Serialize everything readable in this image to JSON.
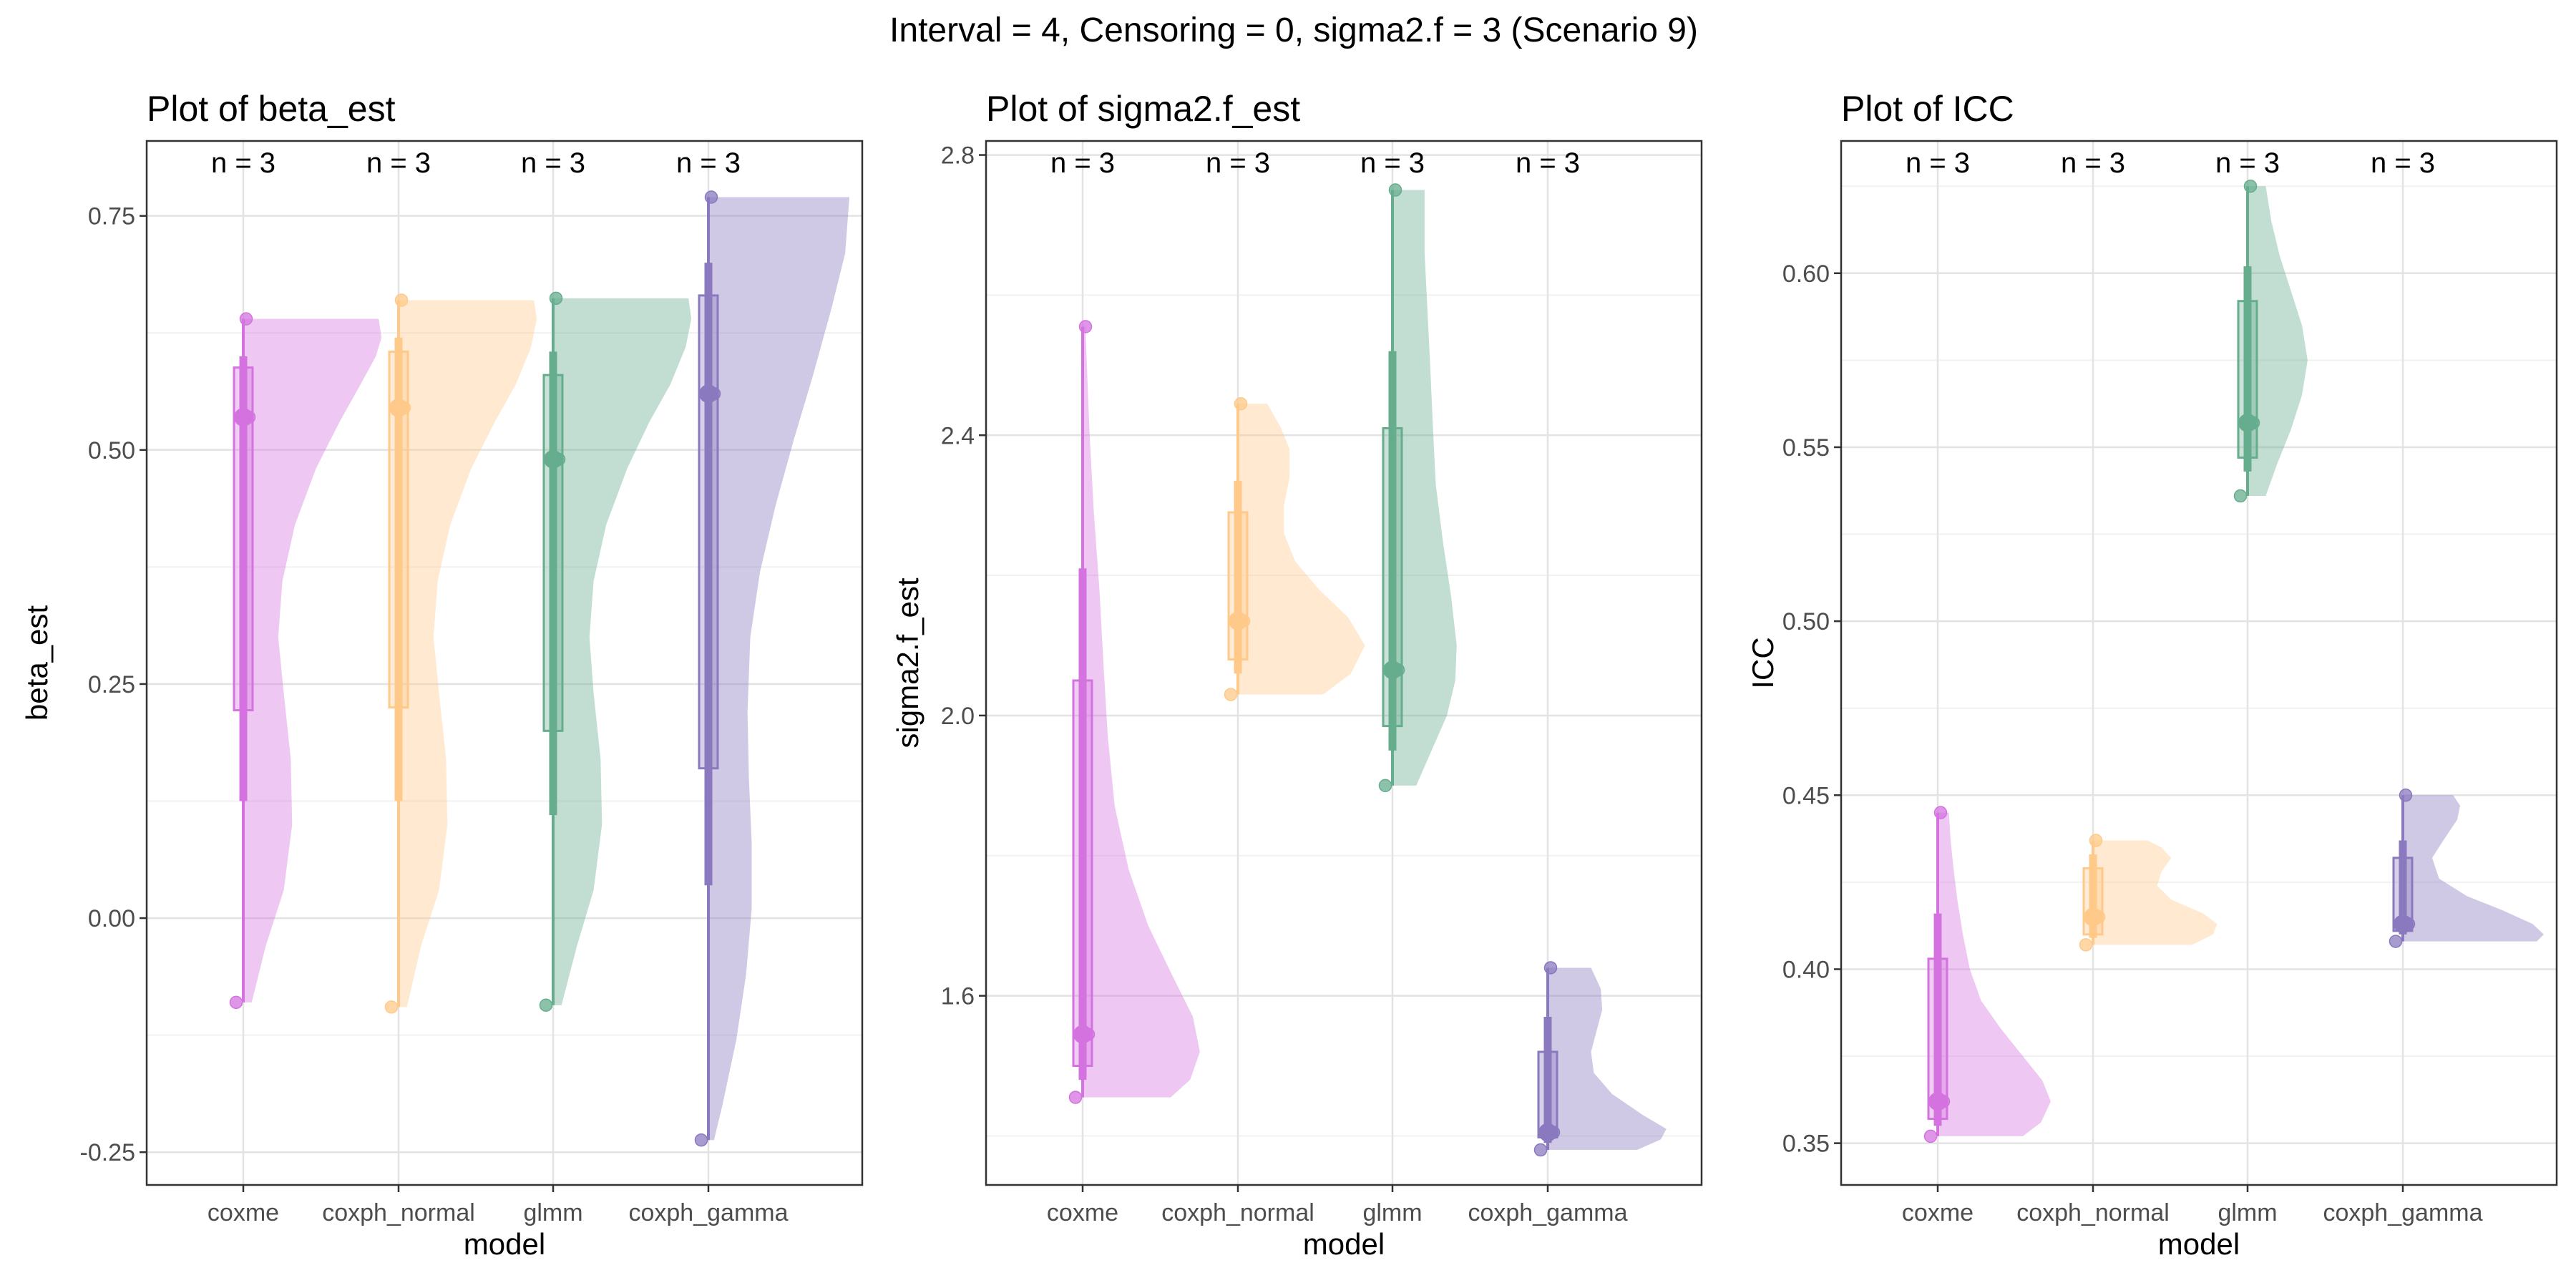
{
  "figure_title": "Interval = 4, Censoring = 0, sigma2.f = 3 (Scenario 9)",
  "colors": {
    "coxme": "#d473e0",
    "coxph_normal": "#ffc989",
    "glmm": "#66ad8e",
    "coxph_gamma": "#8a79bf",
    "grid_major": "#e3e3e3",
    "grid_minor": "#f1f1f1",
    "panel_border": "#333333",
    "text": "#000000",
    "tick_text": "#4d4d4d"
  },
  "chart_data": [
    {
      "type": "raincloud",
      "title": "Plot of beta_est",
      "xlabel": "model",
      "ylabel": "beta_est",
      "categories": [
        "coxme",
        "coxph_normal",
        "glmm",
        "coxph_gamma"
      ],
      "n_labels": [
        "n = 3",
        "n = 3",
        "n = 3",
        "n = 3"
      ],
      "ylim": [
        -0.285,
        0.83
      ],
      "yticks": [
        -0.25,
        0.0,
        0.25,
        0.5,
        0.75
      ],
      "ytick_labels": [
        "-0.25",
        "0.00",
        "0.25",
        "0.50",
        "0.75"
      ],
      "series": [
        {
          "category": "coxme",
          "points": [
            -0.09,
            0.535,
            0.64
          ],
          "median": 0.535,
          "q1": 0.222,
          "q3": 0.588,
          "p10": 0.125,
          "p90": 0.6,
          "density": [
            [
              -0.09,
              0.05
            ],
            [
              -0.03,
              0.15
            ],
            [
              0.03,
              0.28
            ],
            [
              0.1,
              0.34
            ],
            [
              0.17,
              0.33
            ],
            [
              0.24,
              0.28
            ],
            [
              0.3,
              0.24
            ],
            [
              0.36,
              0.27
            ],
            [
              0.42,
              0.36
            ],
            [
              0.48,
              0.51
            ],
            [
              0.53,
              0.68
            ],
            [
              0.57,
              0.83
            ],
            [
              0.6,
              0.94
            ],
            [
              0.62,
              0.98
            ],
            [
              0.64,
              0.96
            ]
          ]
        },
        {
          "category": "coxph_normal",
          "points": [
            -0.095,
            0.545,
            0.66
          ],
          "median": 0.545,
          "q1": 0.225,
          "q3": 0.605,
          "p10": 0.125,
          "p90": 0.62,
          "density": [
            [
              -0.095,
              0.05
            ],
            [
              -0.03,
              0.15
            ],
            [
              0.03,
              0.28
            ],
            [
              0.1,
              0.34
            ],
            [
              0.17,
              0.33
            ],
            [
              0.24,
              0.28
            ],
            [
              0.3,
              0.24
            ],
            [
              0.36,
              0.27
            ],
            [
              0.42,
              0.36
            ],
            [
              0.48,
              0.51
            ],
            [
              0.53,
              0.68
            ],
            [
              0.57,
              0.83
            ],
            [
              0.61,
              0.94
            ],
            [
              0.64,
              0.98
            ],
            [
              0.66,
              0.96
            ]
          ]
        },
        {
          "category": "glmm",
          "points": [
            -0.093,
            0.49,
            0.662
          ],
          "median": 0.49,
          "q1": 0.2,
          "q3": 0.58,
          "p10": 0.11,
          "p90": 0.605,
          "density": [
            [
              -0.093,
              0.05
            ],
            [
              -0.03,
              0.16
            ],
            [
              0.03,
              0.28
            ],
            [
              0.1,
              0.34
            ],
            [
              0.17,
              0.33
            ],
            [
              0.24,
              0.28
            ],
            [
              0.3,
              0.25
            ],
            [
              0.36,
              0.28
            ],
            [
              0.42,
              0.37
            ],
            [
              0.48,
              0.52
            ],
            [
              0.53,
              0.68
            ],
            [
              0.57,
              0.83
            ],
            [
              0.61,
              0.94
            ],
            [
              0.64,
              0.98
            ],
            [
              0.662,
              0.96
            ]
          ]
        },
        {
          "category": "coxph_gamma",
          "points": [
            -0.237,
            0.56,
            0.77
          ],
          "median": 0.56,
          "q1": 0.16,
          "q3": 0.665,
          "p10": 0.035,
          "p90": 0.7,
          "density": [
            [
              -0.237,
              0.03
            ],
            [
              -0.2,
              0.09
            ],
            [
              -0.13,
              0.19
            ],
            [
              -0.06,
              0.26
            ],
            [
              0.01,
              0.3
            ],
            [
              0.08,
              0.3
            ],
            [
              0.15,
              0.28
            ],
            [
              0.22,
              0.27
            ],
            [
              0.3,
              0.29
            ],
            [
              0.37,
              0.36
            ],
            [
              0.44,
              0.47
            ],
            [
              0.51,
              0.6
            ],
            [
              0.58,
              0.74
            ],
            [
              0.65,
              0.87
            ],
            [
              0.71,
              0.97
            ],
            [
              0.77,
              1.0
            ]
          ]
        }
      ]
    },
    {
      "type": "raincloud",
      "title": "Plot of sigma2.f_est",
      "xlabel": "model",
      "ylabel": "sigma2.f_est",
      "categories": [
        "coxme",
        "coxph_normal",
        "glmm",
        "coxph_gamma"
      ],
      "n_labels": [
        "n = 3",
        "n = 3",
        "n = 3",
        "n = 3"
      ],
      "ylim": [
        1.33,
        2.82
      ],
      "yticks": [
        1.6,
        2.0,
        2.4,
        2.8
      ],
      "ytick_labels": [
        "1.6",
        "2.0",
        "2.4",
        "2.8"
      ],
      "series": [
        {
          "category": "coxme",
          "points": [
            1.455,
            1.545,
            2.555
          ],
          "median": 1.545,
          "q1": 1.5,
          "q3": 2.05,
          "p10": 1.48,
          "p90": 2.21,
          "density": [
            [
              1.455,
              0.62
            ],
            [
              1.48,
              0.76
            ],
            [
              1.52,
              0.83
            ],
            [
              1.57,
              0.78
            ],
            [
              1.63,
              0.63
            ],
            [
              1.7,
              0.46
            ],
            [
              1.78,
              0.32
            ],
            [
              1.87,
              0.22
            ],
            [
              1.97,
              0.17
            ],
            [
              2.07,
              0.14
            ],
            [
              2.18,
              0.11
            ],
            [
              2.29,
              0.07
            ],
            [
              2.4,
              0.04
            ],
            [
              2.5,
              0.02
            ],
            [
              2.555,
              0.01
            ]
          ]
        },
        {
          "category": "coxph_normal",
          "points": [
            2.03,
            2.135,
            2.445
          ],
          "median": 2.135,
          "q1": 2.08,
          "q3": 2.29,
          "p10": 2.06,
          "p90": 2.335,
          "density": [
            [
              2.03,
              0.6
            ],
            [
              2.06,
              0.8
            ],
            [
              2.1,
              0.9
            ],
            [
              2.14,
              0.78
            ],
            [
              2.18,
              0.57
            ],
            [
              2.22,
              0.4
            ],
            [
              2.26,
              0.32
            ],
            [
              2.3,
              0.32
            ],
            [
              2.34,
              0.36
            ],
            [
              2.38,
              0.36
            ],
            [
              2.41,
              0.3
            ],
            [
              2.445,
              0.2
            ]
          ]
        },
        {
          "category": "glmm",
          "points": [
            1.9,
            2.065,
            2.75
          ],
          "median": 2.065,
          "q1": 1.985,
          "q3": 2.41,
          "p10": 1.95,
          "p90": 2.52,
          "density": [
            [
              1.9,
              0.16
            ],
            [
              1.95,
              0.27
            ],
            [
              2.0,
              0.38
            ],
            [
              2.05,
              0.44
            ],
            [
              2.1,
              0.45
            ],
            [
              2.17,
              0.41
            ],
            [
              2.25,
              0.35
            ],
            [
              2.33,
              0.3
            ],
            [
              2.41,
              0.28
            ],
            [
              2.5,
              0.26
            ],
            [
              2.58,
              0.24
            ],
            [
              2.66,
              0.22
            ],
            [
              2.75,
              0.22
            ]
          ]
        },
        {
          "category": "coxph_gamma",
          "points": [
            1.38,
            1.405,
            1.64
          ],
          "median": 1.405,
          "q1": 1.398,
          "q3": 1.52,
          "p10": 1.39,
          "p90": 1.57,
          "density": [
            [
              1.38,
              0.63
            ],
            [
              1.395,
              0.8
            ],
            [
              1.41,
              0.84
            ],
            [
              1.43,
              0.67
            ],
            [
              1.46,
              0.45
            ],
            [
              1.49,
              0.32
            ],
            [
              1.52,
              0.3
            ],
            [
              1.55,
              0.34
            ],
            [
              1.58,
              0.38
            ],
            [
              1.61,
              0.37
            ],
            [
              1.64,
              0.3
            ]
          ]
        }
      ]
    },
    {
      "type": "raincloud",
      "title": "Plot of ICC",
      "xlabel": "model",
      "ylabel": "ICC",
      "categories": [
        "coxme",
        "coxph_normal",
        "glmm",
        "coxph_gamma"
      ],
      "n_labels": [
        "n = 3",
        "n = 3",
        "n = 3",
        "n = 3"
      ],
      "ylim": [
        0.338,
        0.638
      ],
      "yticks": [
        0.35,
        0.4,
        0.45,
        0.5,
        0.55,
        0.6
      ],
      "ytick_labels": [
        "0.35",
        "0.40",
        "0.45",
        "0.50",
        "0.55",
        "0.60"
      ],
      "series": [
        {
          "category": "coxme",
          "points": [
            0.352,
            0.362,
            0.445
          ],
          "median": 0.362,
          "q1": 0.357,
          "q3": 0.403,
          "p10": 0.355,
          "p90": 0.416,
          "density": [
            [
              0.352,
              0.6
            ],
            [
              0.356,
              0.73
            ],
            [
              0.362,
              0.8
            ],
            [
              0.368,
              0.74
            ],
            [
              0.375,
              0.6
            ],
            [
              0.383,
              0.44
            ],
            [
              0.391,
              0.3
            ],
            [
              0.4,
              0.22
            ],
            [
              0.41,
              0.17
            ],
            [
              0.42,
              0.13
            ],
            [
              0.43,
              0.1
            ],
            [
              0.438,
              0.08
            ],
            [
              0.445,
              0.07
            ]
          ]
        },
        {
          "category": "coxph_normal",
          "points": [
            0.407,
            0.415,
            0.437
          ],
          "median": 0.415,
          "q1": 0.41,
          "q3": 0.429,
          "p10": 0.409,
          "p90": 0.433,
          "density": [
            [
              0.407,
              0.7
            ],
            [
              0.41,
              0.85
            ],
            [
              0.413,
              0.88
            ],
            [
              0.416,
              0.78
            ],
            [
              0.42,
              0.55
            ],
            [
              0.424,
              0.45
            ],
            [
              0.428,
              0.48
            ],
            [
              0.432,
              0.55
            ],
            [
              0.435,
              0.48
            ],
            [
              0.437,
              0.38
            ]
          ]
        },
        {
          "category": "glmm",
          "points": [
            0.536,
            0.557,
            0.625
          ],
          "median": 0.557,
          "q1": 0.547,
          "q3": 0.592,
          "p10": 0.543,
          "p90": 0.602,
          "density": [
            [
              0.536,
              0.12
            ],
            [
              0.545,
              0.2
            ],
            [
              0.555,
              0.3
            ],
            [
              0.565,
              0.38
            ],
            [
              0.575,
              0.42
            ],
            [
              0.585,
              0.38
            ],
            [
              0.595,
              0.3
            ],
            [
              0.605,
              0.22
            ],
            [
              0.615,
              0.16
            ],
            [
              0.625,
              0.12
            ]
          ]
        },
        {
          "category": "coxph_gamma",
          "points": [
            0.408,
            0.413,
            0.45
          ],
          "median": 0.413,
          "q1": 0.411,
          "q3": 0.432,
          "p10": 0.41,
          "p90": 0.437,
          "density": [
            [
              0.408,
              0.95
            ],
            [
              0.41,
              1.0
            ],
            [
              0.413,
              0.92
            ],
            [
              0.417,
              0.7
            ],
            [
              0.421,
              0.45
            ],
            [
              0.426,
              0.25
            ],
            [
              0.432,
              0.2
            ],
            [
              0.437,
              0.28
            ],
            [
              0.443,
              0.38
            ],
            [
              0.447,
              0.4
            ],
            [
              0.45,
              0.35
            ]
          ]
        }
      ]
    }
  ]
}
